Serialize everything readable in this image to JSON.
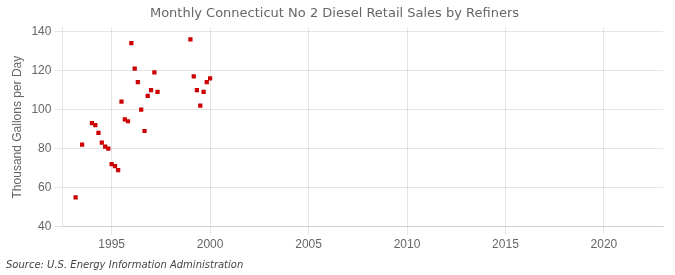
{
  "chart_data": {
    "type": "scatter",
    "title": "Monthly Connecticut No 2 Diesel Retail Sales by Refiners",
    "ylabel": "Thousand Gallons per Day",
    "annotation": "Source: U.S. Energy Information Administration",
    "x": [
      1993.17,
      1993.5,
      1994.0,
      1994.17,
      1994.33,
      1994.5,
      1994.67,
      1994.83,
      1995.0,
      1995.17,
      1995.33,
      1995.5,
      1995.67,
      1995.83,
      1996.0,
      1996.17,
      1996.33,
      1996.5,
      1996.67,
      1996.83,
      1997.0,
      1997.17,
      1997.33,
      1999.0,
      1999.17,
      1999.33,
      1999.5,
      1999.67,
      1999.83,
      2000.0
    ],
    "values": [
      55,
      82,
      93,
      92,
      88,
      83,
      81,
      80,
      72,
      71,
      69,
      104,
      95,
      94,
      134,
      121,
      114,
      100,
      89,
      107,
      110,
      119,
      109,
      136,
      117,
      110,
      102,
      109,
      114,
      116
    ],
    "color": "#cc0000",
    "marker": "square",
    "xlim": [
      1992.5,
      2023
    ],
    "ylim": [
      40,
      142
    ],
    "xticks": [
      1995,
      2000,
      2005,
      2010,
      2015,
      2020
    ],
    "yticks": [
      40,
      60,
      80,
      100,
      120,
      140
    ],
    "grid": true
  }
}
